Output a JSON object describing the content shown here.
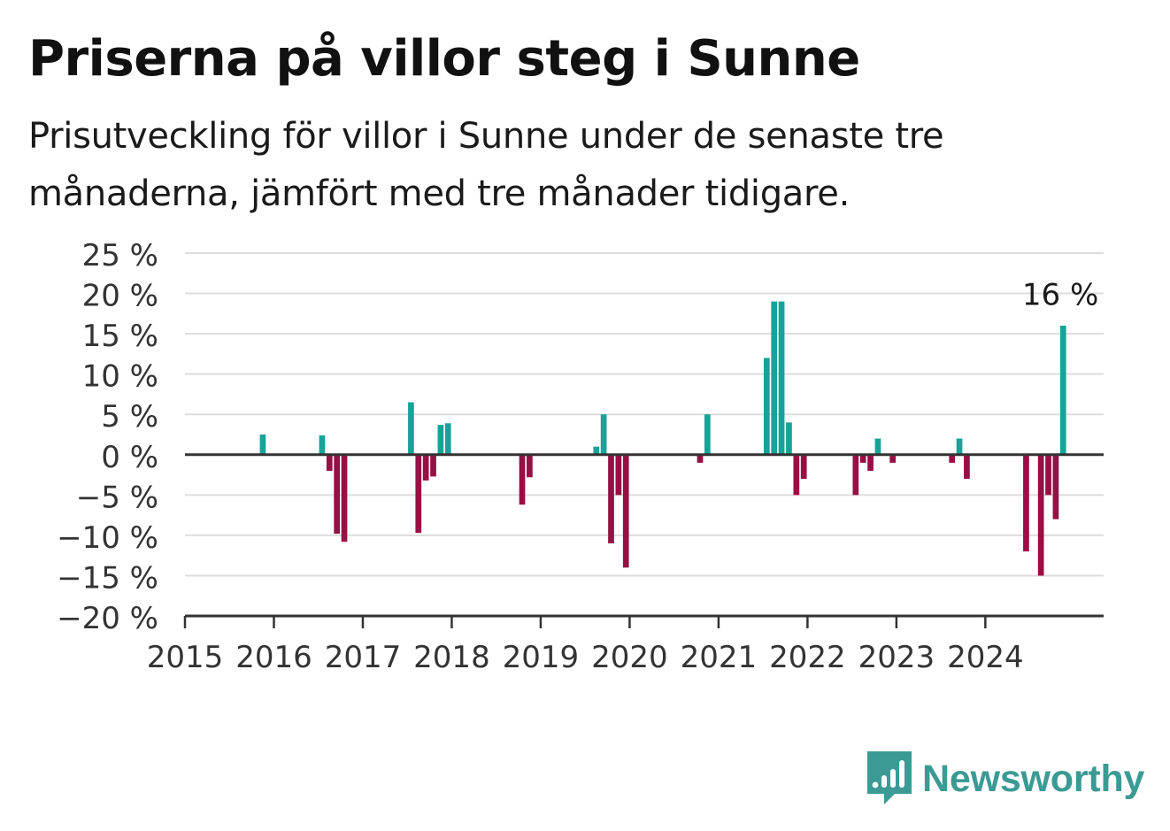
{
  "header": {
    "title": "Priserna på villor steg i Sunne",
    "subtitle": "Prisutveckling för villor i Sunne under de senaste tre månaderna, jämfört med tre månader tidigare."
  },
  "brand": {
    "name": "Newsworthy",
    "icon": "newsworthy-logo-icon"
  },
  "colors": {
    "positive": "#17a398",
    "negative": "#960f45",
    "grid": "#dddddd",
    "axis": "#333333"
  },
  "chart_data": {
    "type": "bar",
    "title": "Priserna på villor steg i Sunne",
    "subtitle": "Prisutveckling för villor i Sunne under de senaste tre månaderna, jämfört med tre månader tidigare.",
    "xlabel": "",
    "ylabel": "",
    "ylim": [
      -20,
      25
    ],
    "xlim": [
      2015.0,
      2025.33
    ],
    "y_ticks": [
      25,
      20,
      15,
      10,
      5,
      0,
      -5,
      -10,
      -15,
      -20
    ],
    "y_tick_labels": [
      "25 %",
      "20 %",
      "15 %",
      "10 %",
      "5 %",
      "0 %",
      "−5 %",
      "−10 %",
      "−15 %",
      "−20 %"
    ],
    "x_ticks": [
      2015,
      2016,
      2017,
      2018,
      2019,
      2020,
      2021,
      2022,
      2023,
      2024
    ],
    "x_tick_labels": [
      "2015",
      "2016",
      "2017",
      "2018",
      "2019",
      "2020",
      "2021",
      "2022",
      "2023",
      "2024"
    ],
    "grid": true,
    "annotation": {
      "label": "16 %",
      "date": "2024-11"
    },
    "series": [
      {
        "x": [
          "2015-11",
          "2016-07",
          "2016-08",
          "2016-09",
          "2016-10",
          "2017-07",
          "2017-08",
          "2017-09",
          "2017-10",
          "2017-11",
          "2017-12",
          "2018-10",
          "2018-11",
          "2019-08",
          "2019-09",
          "2019-10",
          "2019-11",
          "2019-12",
          "2020-10",
          "2020-11",
          "2021-07",
          "2021-08",
          "2021-09",
          "2021-10",
          "2021-11",
          "2021-12",
          "2022-07",
          "2022-08",
          "2022-09",
          "2022-10",
          "2022-12",
          "2023-08",
          "2023-09",
          "2023-10",
          "2024-06",
          "2024-08",
          "2024-09",
          "2024-10",
          "2024-11"
        ],
        "values": [
          2.5,
          2.4,
          -2,
          -9.8,
          -10.8,
          6.5,
          -9.7,
          -3.2,
          -2.7,
          3.7,
          3.9,
          -6.2,
          -2.8,
          1,
          5,
          -11,
          -5,
          -14,
          -1,
          5,
          12,
          19,
          19,
          4,
          -5,
          -3,
          -5,
          -1,
          -2,
          2,
          -1,
          -1,
          2,
          -3,
          -12,
          -15,
          -5,
          -8,
          16
        ]
      }
    ]
  }
}
